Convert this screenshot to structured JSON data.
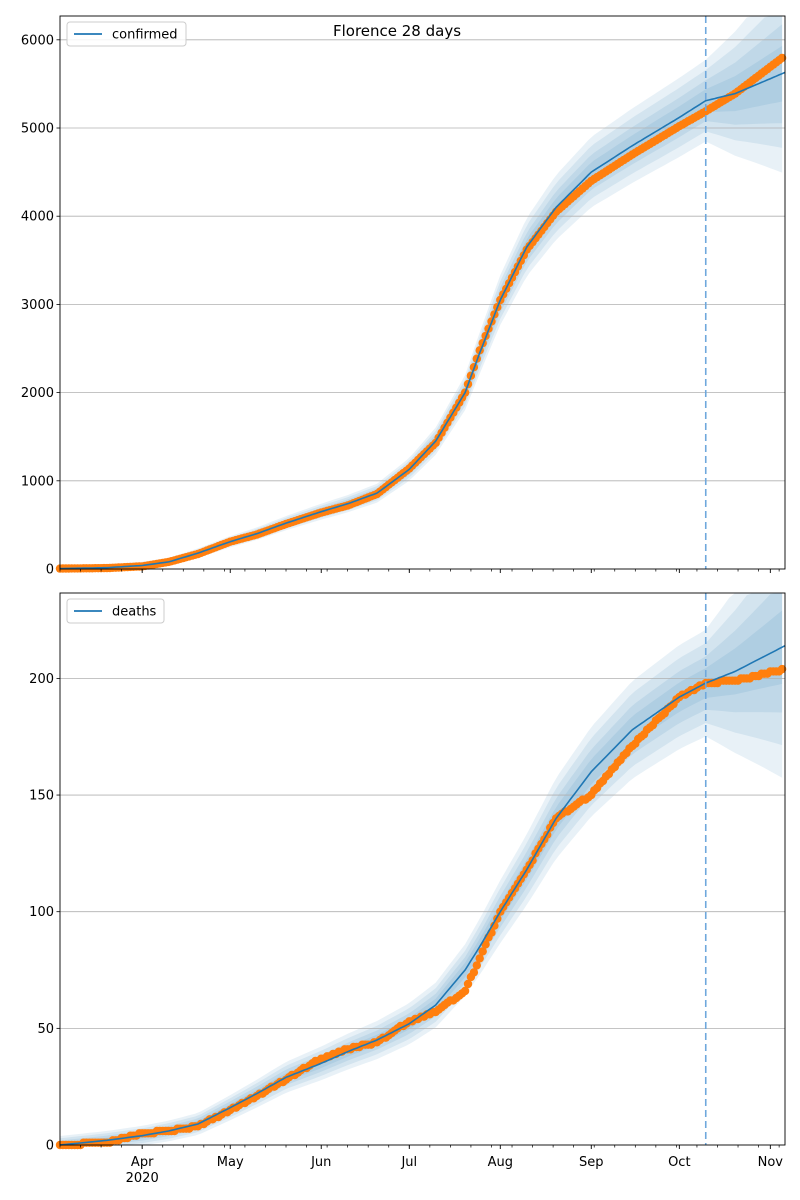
{
  "figure": {
    "title": "Florence 28 days"
  },
  "chart_data": [
    {
      "type": "line",
      "legend_loc": "upper-left",
      "grid": "y",
      "ylim": [
        0,
        6270
      ],
      "yticks": [
        0,
        1000,
        2000,
        3000,
        4000,
        5000,
        6000
      ],
      "xlim": [
        "2020-03-04",
        "2020-11-06"
      ],
      "xticks": [
        {
          "date": "2020-04-01",
          "label": "Apr",
          "year": "2020"
        },
        {
          "date": "2020-05-01",
          "label": "May"
        },
        {
          "date": "2020-06-01",
          "label": "Jun"
        },
        {
          "date": "2020-07-01",
          "label": "Jul"
        },
        {
          "date": "2020-08-01",
          "label": "Aug"
        },
        {
          "date": "2020-09-01",
          "label": "Sep"
        },
        {
          "date": "2020-10-01",
          "label": "Oct"
        },
        {
          "date": "2020-11-01",
          "label": "Nov"
        }
      ],
      "forecast_start": "2020-10-10",
      "series": [
        {
          "name": "confirmed",
          "kind": "model",
          "color": "#1f77b4",
          "points": [
            [
              "2020-03-04",
              5
            ],
            [
              "2020-03-20",
              15
            ],
            [
              "2020-04-01",
              40
            ],
            [
              "2020-04-10",
              80
            ],
            [
              "2020-04-20",
              180
            ],
            [
              "2020-05-01",
              310
            ],
            [
              "2020-05-10",
              400
            ],
            [
              "2020-05-20",
              520
            ],
            [
              "2020-06-01",
              650
            ],
            [
              "2020-06-10",
              740
            ],
            [
              "2020-06-20",
              860
            ],
            [
              "2020-07-01",
              1130
            ],
            [
              "2020-07-10",
              1450
            ],
            [
              "2020-07-20",
              2000
            ],
            [
              "2020-07-25",
              2450
            ],
            [
              "2020-08-01",
              3050
            ],
            [
              "2020-08-10",
              3650
            ],
            [
              "2020-08-20",
              4100
            ],
            [
              "2020-09-01",
              4500
            ],
            [
              "2020-09-15",
              4800
            ],
            [
              "2020-10-01",
              5120
            ],
            [
              "2020-10-10",
              5310
            ],
            [
              "2020-10-20",
              5390
            ],
            [
              "2020-11-06",
              5630
            ]
          ]
        },
        {
          "name": "",
          "kind": "observed",
          "color": "#ff7f0e",
          "points": [
            [
              "2020-03-04",
              5
            ],
            [
              "2020-03-20",
              10
            ],
            [
              "2020-04-01",
              30
            ],
            [
              "2020-04-10",
              80
            ],
            [
              "2020-04-20",
              170
            ],
            [
              "2020-05-01",
              310
            ],
            [
              "2020-05-10",
              390
            ],
            [
              "2020-05-20",
              510
            ],
            [
              "2020-06-01",
              640
            ],
            [
              "2020-06-10",
              720
            ],
            [
              "2020-06-20",
              850
            ],
            [
              "2020-07-01",
              1140
            ],
            [
              "2020-07-10",
              1430
            ],
            [
              "2020-07-20",
              2000
            ],
            [
              "2020-07-25",
              2480
            ],
            [
              "2020-08-01",
              3050
            ],
            [
              "2020-08-10",
              3620
            ],
            [
              "2020-08-20",
              4050
            ],
            [
              "2020-09-01",
              4400
            ],
            [
              "2020-09-15",
              4700
            ],
            [
              "2020-10-01",
              5020
            ],
            [
              "2020-10-10",
              5190
            ],
            [
              "2020-10-20",
              5390
            ],
            [
              "2020-11-06",
              5820
            ]
          ]
        }
      ]
    },
    {
      "type": "line",
      "legend_loc": "upper-left",
      "grid": "y",
      "ylim": [
        0,
        236.6
      ],
      "yticks": [
        0,
        50,
        100,
        150,
        200
      ],
      "xlim": [
        "2020-03-04",
        "2020-11-06"
      ],
      "forecast_start": "2020-10-10",
      "series": [
        {
          "name": "deaths",
          "kind": "model",
          "color": "#1f77b4",
          "points": [
            [
              "2020-03-04",
              0
            ],
            [
              "2020-03-20",
              2
            ],
            [
              "2020-04-01",
              4
            ],
            [
              "2020-04-10",
              6
            ],
            [
              "2020-04-20",
              9
            ],
            [
              "2020-05-01",
              16
            ],
            [
              "2020-05-10",
              22
            ],
            [
              "2020-05-20",
              29
            ],
            [
              "2020-06-01",
              35
            ],
            [
              "2020-06-10",
              40
            ],
            [
              "2020-06-20",
              45
            ],
            [
              "2020-07-01",
              52
            ],
            [
              "2020-07-10",
              60
            ],
            [
              "2020-07-20",
              75
            ],
            [
              "2020-07-25",
              85
            ],
            [
              "2020-08-01",
              100
            ],
            [
              "2020-08-10",
              118
            ],
            [
              "2020-08-20",
              140
            ],
            [
              "2020-09-01",
              160
            ],
            [
              "2020-09-15",
              178
            ],
            [
              "2020-10-01",
              192
            ],
            [
              "2020-10-10",
              198
            ],
            [
              "2020-10-20",
              203
            ],
            [
              "2020-11-06",
              214
            ]
          ]
        },
        {
          "name": "",
          "kind": "observed",
          "color": "#ff7f0e",
          "points": [
            [
              "2020-03-04",
              0
            ],
            [
              "2020-03-20",
              1
            ],
            [
              "2020-04-01",
              5
            ],
            [
              "2020-04-10",
              6
            ],
            [
              "2020-04-20",
              8
            ],
            [
              "2020-05-01",
              15
            ],
            [
              "2020-05-10",
              21
            ],
            [
              "2020-05-20",
              28
            ],
            [
              "2020-06-01",
              37
            ],
            [
              "2020-06-10",
              41
            ],
            [
              "2020-06-20",
              44
            ],
            [
              "2020-07-01",
              53
            ],
            [
              "2020-07-10",
              57
            ],
            [
              "2020-07-20",
              66
            ],
            [
              "2020-07-25",
              80
            ],
            [
              "2020-08-01",
              100
            ],
            [
              "2020-08-10",
              118
            ],
            [
              "2020-08-20",
              140
            ],
            [
              "2020-09-01",
              150
            ],
            [
              "2020-09-15",
              171
            ],
            [
              "2020-10-01",
              192
            ],
            [
              "2020-10-10",
              198
            ],
            [
              "2020-10-20",
              199
            ],
            [
              "2020-11-06",
              204
            ]
          ]
        }
      ]
    }
  ]
}
